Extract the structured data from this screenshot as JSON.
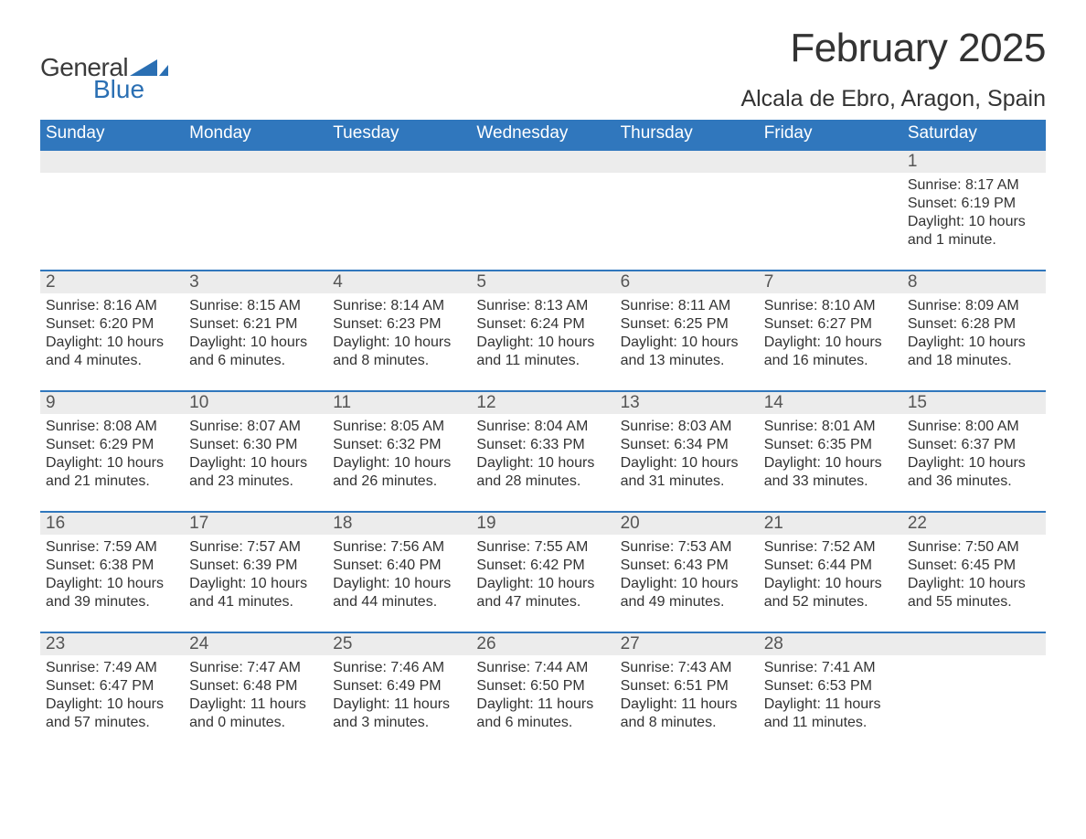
{
  "logo": {
    "general": "General",
    "blue": "Blue",
    "sail_color": "#2a6fb3"
  },
  "header": {
    "month_title": "February 2025",
    "location": "Alcala de Ebro, Aragon, Spain"
  },
  "colors": {
    "header_bg": "#3077bd",
    "header_text": "#ffffff",
    "daynum_bg": "#ececec",
    "border_top": "#3077bd",
    "body_text": "#333333"
  },
  "font": {
    "family": "Segoe UI",
    "weekday_size": 19,
    "detail_size": 16,
    "title_size": 44,
    "location_size": 25
  },
  "weekdays": [
    "Sunday",
    "Monday",
    "Tuesday",
    "Wednesday",
    "Thursday",
    "Friday",
    "Saturday"
  ],
  "weeks": [
    [
      {
        "day": "",
        "sunrise": "",
        "sunset": "",
        "daylight": ""
      },
      {
        "day": "",
        "sunrise": "",
        "sunset": "",
        "daylight": ""
      },
      {
        "day": "",
        "sunrise": "",
        "sunset": "",
        "daylight": ""
      },
      {
        "day": "",
        "sunrise": "",
        "sunset": "",
        "daylight": ""
      },
      {
        "day": "",
        "sunrise": "",
        "sunset": "",
        "daylight": ""
      },
      {
        "day": "",
        "sunrise": "",
        "sunset": "",
        "daylight": ""
      },
      {
        "day": "1",
        "sunrise": "Sunrise: 8:17 AM",
        "sunset": "Sunset: 6:19 PM",
        "daylight": "Daylight: 10 hours and 1 minute."
      }
    ],
    [
      {
        "day": "2",
        "sunrise": "Sunrise: 8:16 AM",
        "sunset": "Sunset: 6:20 PM",
        "daylight": "Daylight: 10 hours and 4 minutes."
      },
      {
        "day": "3",
        "sunrise": "Sunrise: 8:15 AM",
        "sunset": "Sunset: 6:21 PM",
        "daylight": "Daylight: 10 hours and 6 minutes."
      },
      {
        "day": "4",
        "sunrise": "Sunrise: 8:14 AM",
        "sunset": "Sunset: 6:23 PM",
        "daylight": "Daylight: 10 hours and 8 minutes."
      },
      {
        "day": "5",
        "sunrise": "Sunrise: 8:13 AM",
        "sunset": "Sunset: 6:24 PM",
        "daylight": "Daylight: 10 hours and 11 minutes."
      },
      {
        "day": "6",
        "sunrise": "Sunrise: 8:11 AM",
        "sunset": "Sunset: 6:25 PM",
        "daylight": "Daylight: 10 hours and 13 minutes."
      },
      {
        "day": "7",
        "sunrise": "Sunrise: 8:10 AM",
        "sunset": "Sunset: 6:27 PM",
        "daylight": "Daylight: 10 hours and 16 minutes."
      },
      {
        "day": "8",
        "sunrise": "Sunrise: 8:09 AM",
        "sunset": "Sunset: 6:28 PM",
        "daylight": "Daylight: 10 hours and 18 minutes."
      }
    ],
    [
      {
        "day": "9",
        "sunrise": "Sunrise: 8:08 AM",
        "sunset": "Sunset: 6:29 PM",
        "daylight": "Daylight: 10 hours and 21 minutes."
      },
      {
        "day": "10",
        "sunrise": "Sunrise: 8:07 AM",
        "sunset": "Sunset: 6:30 PM",
        "daylight": "Daylight: 10 hours and 23 minutes."
      },
      {
        "day": "11",
        "sunrise": "Sunrise: 8:05 AM",
        "sunset": "Sunset: 6:32 PM",
        "daylight": "Daylight: 10 hours and 26 minutes."
      },
      {
        "day": "12",
        "sunrise": "Sunrise: 8:04 AM",
        "sunset": "Sunset: 6:33 PM",
        "daylight": "Daylight: 10 hours and 28 minutes."
      },
      {
        "day": "13",
        "sunrise": "Sunrise: 8:03 AM",
        "sunset": "Sunset: 6:34 PM",
        "daylight": "Daylight: 10 hours and 31 minutes."
      },
      {
        "day": "14",
        "sunrise": "Sunrise: 8:01 AM",
        "sunset": "Sunset: 6:35 PM",
        "daylight": "Daylight: 10 hours and 33 minutes."
      },
      {
        "day": "15",
        "sunrise": "Sunrise: 8:00 AM",
        "sunset": "Sunset: 6:37 PM",
        "daylight": "Daylight: 10 hours and 36 minutes."
      }
    ],
    [
      {
        "day": "16",
        "sunrise": "Sunrise: 7:59 AM",
        "sunset": "Sunset: 6:38 PM",
        "daylight": "Daylight: 10 hours and 39 minutes."
      },
      {
        "day": "17",
        "sunrise": "Sunrise: 7:57 AM",
        "sunset": "Sunset: 6:39 PM",
        "daylight": "Daylight: 10 hours and 41 minutes."
      },
      {
        "day": "18",
        "sunrise": "Sunrise: 7:56 AM",
        "sunset": "Sunset: 6:40 PM",
        "daylight": "Daylight: 10 hours and 44 minutes."
      },
      {
        "day": "19",
        "sunrise": "Sunrise: 7:55 AM",
        "sunset": "Sunset: 6:42 PM",
        "daylight": "Daylight: 10 hours and 47 minutes."
      },
      {
        "day": "20",
        "sunrise": "Sunrise: 7:53 AM",
        "sunset": "Sunset: 6:43 PM",
        "daylight": "Daylight: 10 hours and 49 minutes."
      },
      {
        "day": "21",
        "sunrise": "Sunrise: 7:52 AM",
        "sunset": "Sunset: 6:44 PM",
        "daylight": "Daylight: 10 hours and 52 minutes."
      },
      {
        "day": "22",
        "sunrise": "Sunrise: 7:50 AM",
        "sunset": "Sunset: 6:45 PM",
        "daylight": "Daylight: 10 hours and 55 minutes."
      }
    ],
    [
      {
        "day": "23",
        "sunrise": "Sunrise: 7:49 AM",
        "sunset": "Sunset: 6:47 PM",
        "daylight": "Daylight: 10 hours and 57 minutes."
      },
      {
        "day": "24",
        "sunrise": "Sunrise: 7:47 AM",
        "sunset": "Sunset: 6:48 PM",
        "daylight": "Daylight: 11 hours and 0 minutes."
      },
      {
        "day": "25",
        "sunrise": "Sunrise: 7:46 AM",
        "sunset": "Sunset: 6:49 PM",
        "daylight": "Daylight: 11 hours and 3 minutes."
      },
      {
        "day": "26",
        "sunrise": "Sunrise: 7:44 AM",
        "sunset": "Sunset: 6:50 PM",
        "daylight": "Daylight: 11 hours and 6 minutes."
      },
      {
        "day": "27",
        "sunrise": "Sunrise: 7:43 AM",
        "sunset": "Sunset: 6:51 PM",
        "daylight": "Daylight: 11 hours and 8 minutes."
      },
      {
        "day": "28",
        "sunrise": "Sunrise: 7:41 AM",
        "sunset": "Sunset: 6:53 PM",
        "daylight": "Daylight: 11 hours and 11 minutes."
      },
      {
        "day": "",
        "sunrise": "",
        "sunset": "",
        "daylight": ""
      }
    ]
  ]
}
